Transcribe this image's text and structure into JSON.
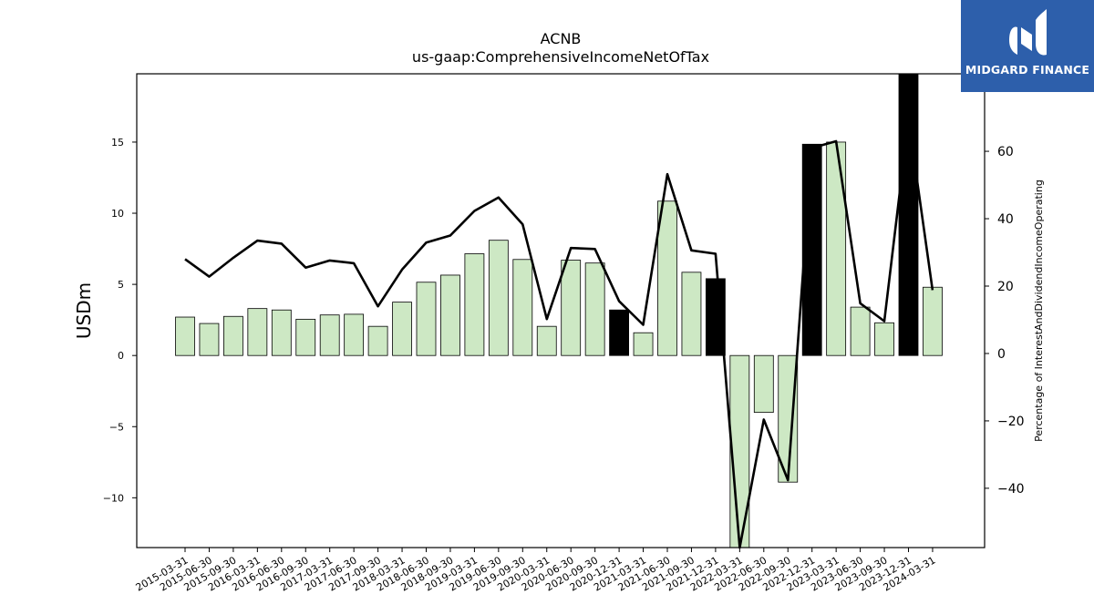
{
  "logo": {
    "brand": "MIDGARD FINANCE",
    "icon": "midgard-logo-icon"
  },
  "chart_data": {
    "type": "bar",
    "title": "ACNB",
    "subtitle": "us-gaap:ComprehensiveIncomeNetOfTax",
    "ylabel": "USDm",
    "y2label": "Percentage of InterestAndDividendIncomeOperating",
    "ylim": [
      -13.5,
      19.8
    ],
    "y2lim": [
      -57.6,
      83.0
    ],
    "yticks": [
      -10,
      -5,
      0,
      5,
      10,
      15
    ],
    "y2ticks": [
      -40,
      -20,
      0,
      20,
      40,
      60
    ],
    "grid": false,
    "categories": [
      "2015-03-31",
      "2015-06-30",
      "2015-09-30",
      "2016-03-31",
      "2016-06-30",
      "2016-09-30",
      "2017-03-31",
      "2017-06-30",
      "2017-09-30",
      "2018-03-31",
      "2018-06-30",
      "2018-09-30",
      "2019-03-31",
      "2019-06-30",
      "2019-09-30",
      "2020-03-31",
      "2020-06-30",
      "2020-09-30",
      "2020-12-31",
      "2021-03-31",
      "2021-06-30",
      "2021-09-30",
      "2021-12-31",
      "2022-03-31",
      "2022-06-30",
      "2022-09-30",
      "2022-12-31",
      "2023-03-31",
      "2023-06-30",
      "2023-09-30",
      "2023-12-31",
      "2024-03-31"
    ],
    "series": [
      {
        "type": "bar",
        "axis": "left",
        "values": [
          2.7,
          2.25,
          2.75,
          3.3,
          3.2,
          2.55,
          2.85,
          2.9,
          2.05,
          3.75,
          5.15,
          5.65,
          7.15,
          8.1,
          6.75,
          2.05,
          6.7,
          6.5,
          3.2,
          1.6,
          10.85,
          5.85,
          5.4,
          -13.6,
          -4.0,
          -8.9,
          14.85,
          15.0,
          3.4,
          2.3,
          20.0,
          4.8
        ],
        "highlighted": [
          false,
          false,
          false,
          false,
          false,
          false,
          false,
          false,
          false,
          false,
          false,
          false,
          false,
          false,
          false,
          false,
          false,
          false,
          true,
          false,
          false,
          false,
          true,
          false,
          false,
          false,
          true,
          false,
          false,
          false,
          true,
          false
        ],
        "color": "#cde8c4",
        "highlight_color": "#000000"
      },
      {
        "type": "line",
        "axis": "right",
        "values": [
          28.0,
          22.8,
          28.4,
          33.5,
          32.6,
          25.5,
          27.6,
          26.8,
          14.0,
          24.9,
          32.9,
          35.0,
          42.3,
          46.3,
          38.3,
          10.2,
          31.3,
          31.0,
          15.5,
          8.5,
          53.2,
          30.6,
          29.6,
          -57.6,
          -19.6,
          -37.6,
          61.0,
          63.0,
          14.9,
          9.6,
          69.5,
          18.8
        ],
        "color": "#000000"
      }
    ]
  }
}
